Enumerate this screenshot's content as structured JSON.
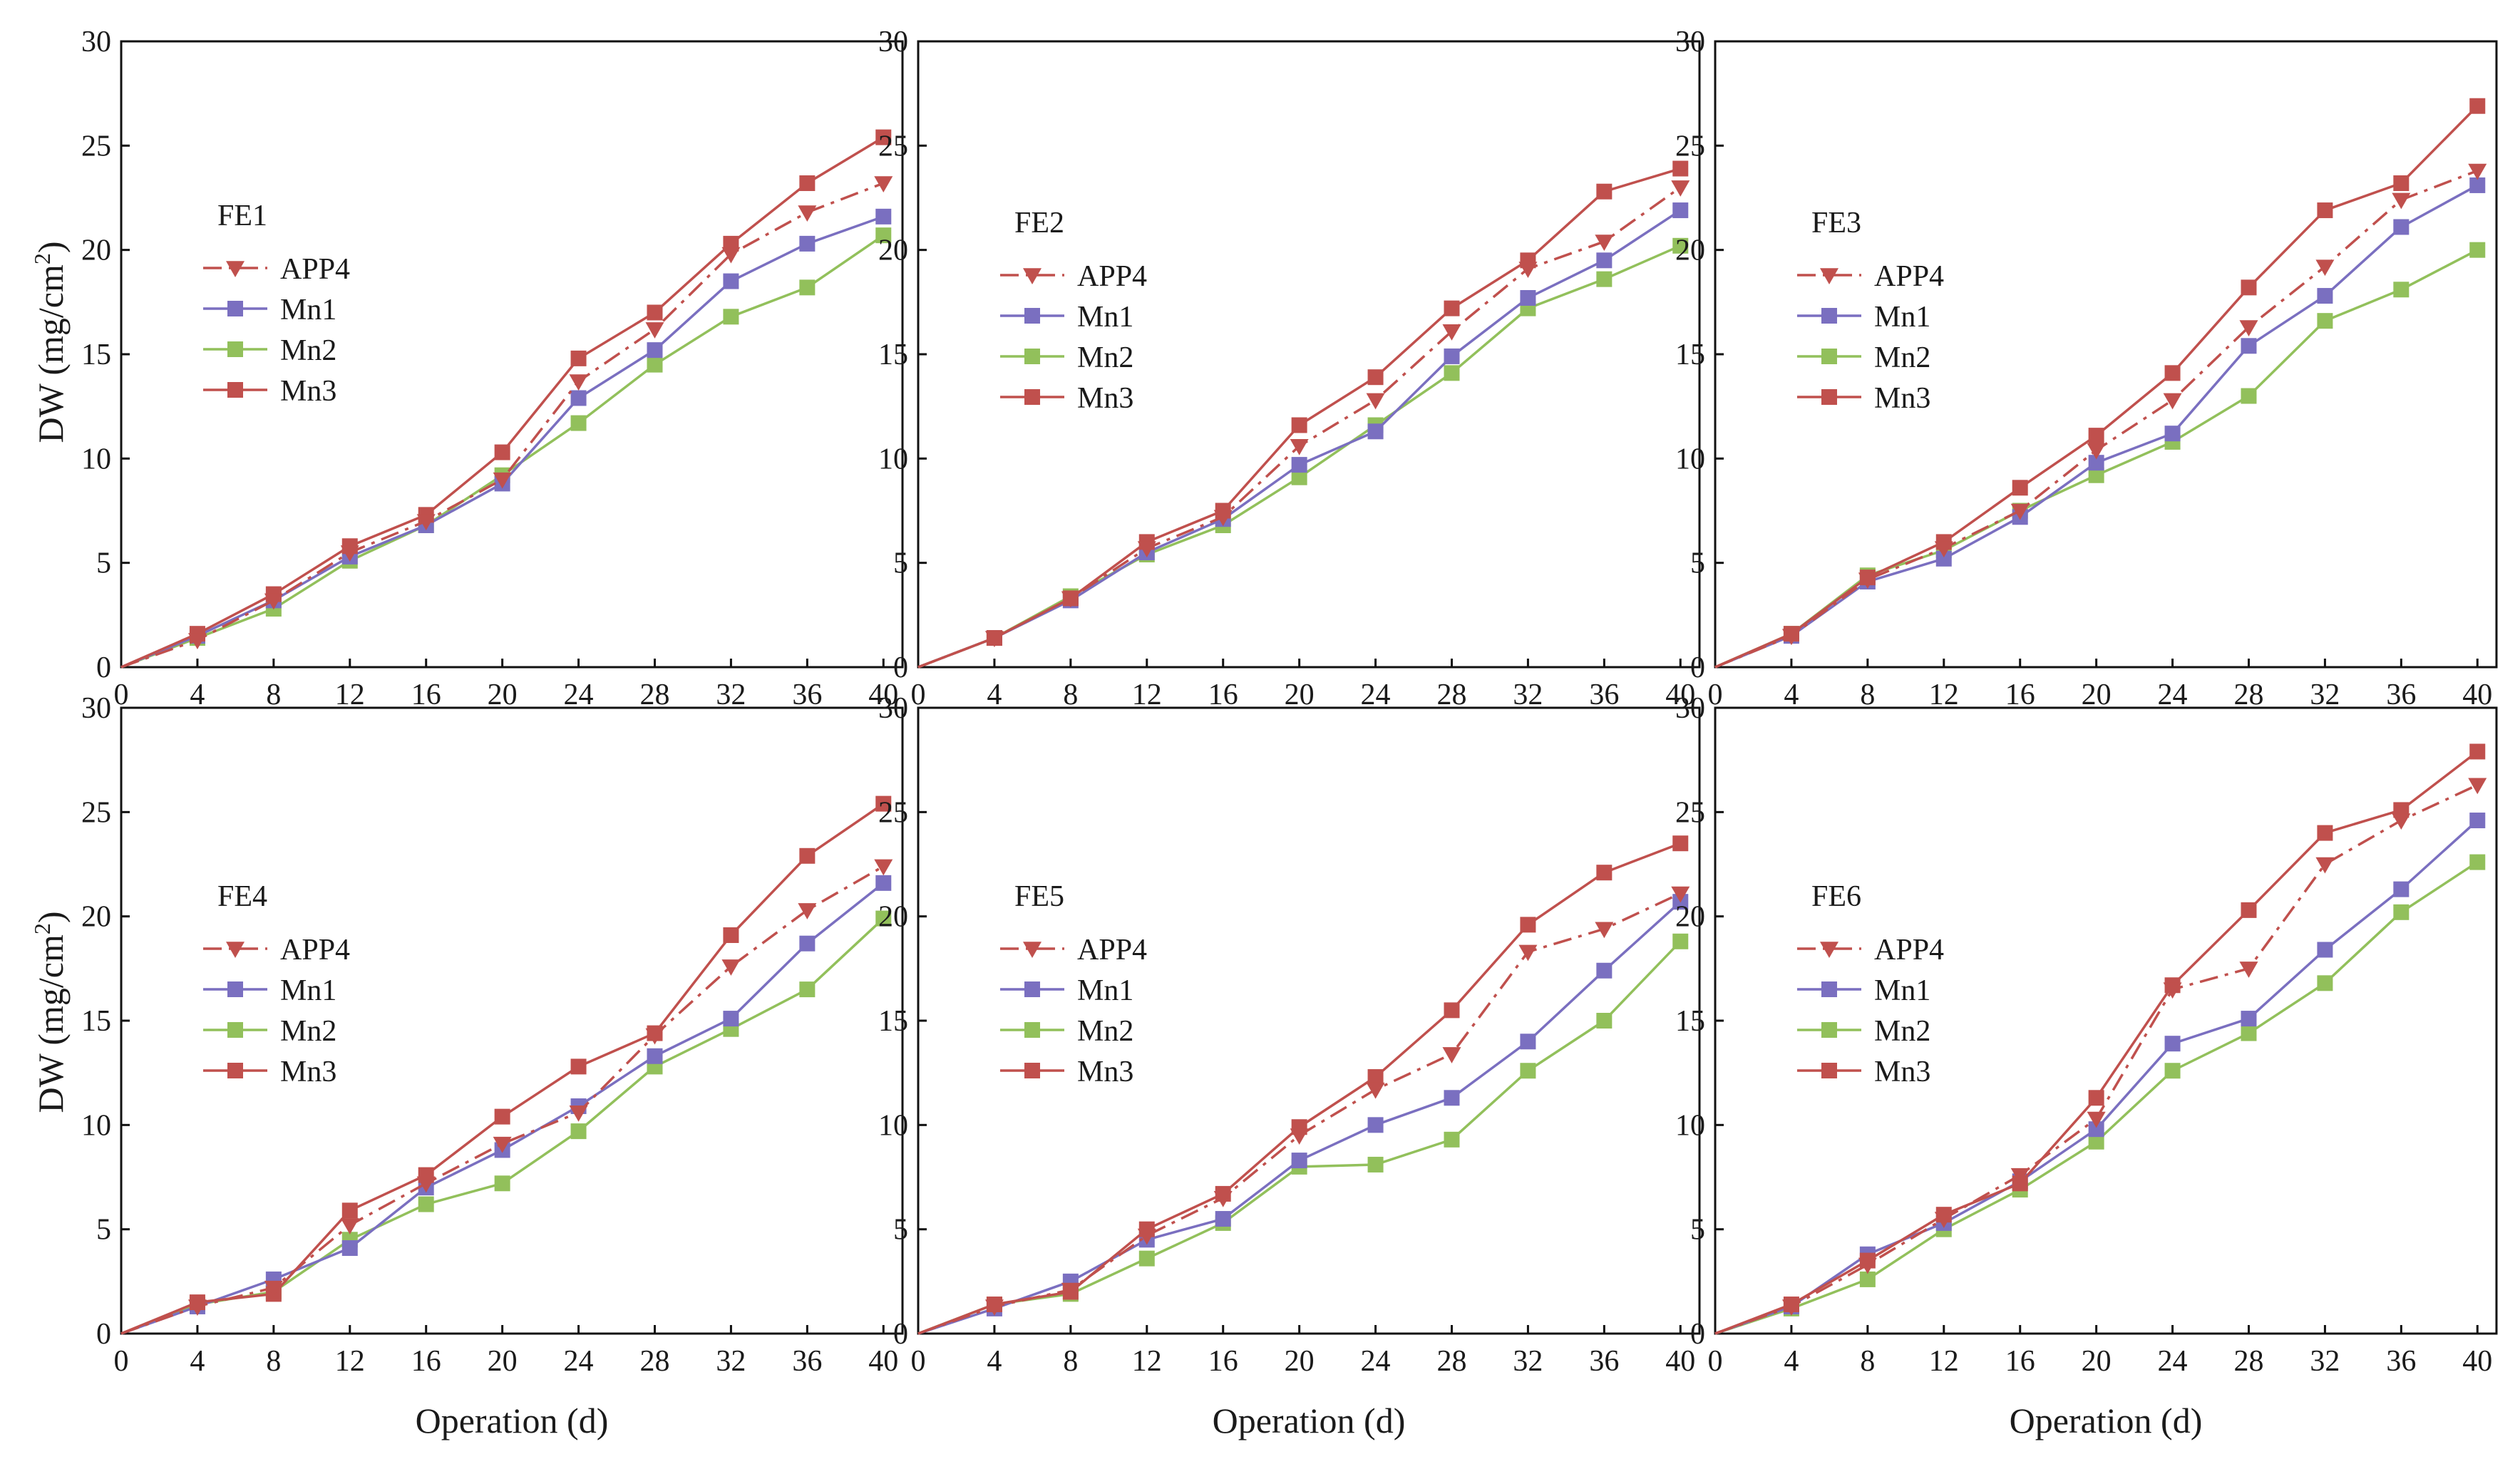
{
  "figure": {
    "y_axis_title": "DW (mg/cm",
    "y_axis_superscript": "2",
    "y_axis_title_end": ")",
    "x_axis_title": "Operation (d)"
  },
  "legend": [
    {
      "name": "APP4",
      "color": "#c0504d",
      "marker": "triangle-down",
      "dash": "dash-dot"
    },
    {
      "name": "Mn1",
      "color": "#7a6fc0",
      "marker": "square",
      "dash": "solid"
    },
    {
      "name": "Mn2",
      "color": "#92c05b",
      "marker": "square",
      "dash": "solid"
    },
    {
      "name": "Mn3",
      "color": "#c0504d",
      "marker": "square",
      "dash": "solid"
    }
  ],
  "chart_data": [
    {
      "type": "line",
      "title": "FE1",
      "xlabel": "Operation (d)",
      "ylabel": "DW (mg/cm2)",
      "x": [
        0,
        4,
        8,
        12,
        16,
        20,
        24,
        28,
        32,
        36,
        40
      ],
      "xlim": [
        0,
        41
      ],
      "ylim": [
        0,
        30
      ],
      "xticks": [
        0,
        4,
        8,
        12,
        16,
        20,
        24,
        28,
        32,
        36,
        40
      ],
      "yticks": [
        0,
        5,
        10,
        15,
        20,
        25,
        30
      ],
      "series": [
        {
          "name": "APP4",
          "values": [
            0,
            1.3,
            3.2,
            5.5,
            7.0,
            9.0,
            13.7,
            16.2,
            19.8,
            21.8,
            23.2
          ]
        },
        {
          "name": "Mn1",
          "values": [
            0,
            1.5,
            3.2,
            5.3,
            6.8,
            8.8,
            12.9,
            15.2,
            18.5,
            20.3,
            21.6
          ]
        },
        {
          "name": "Mn2",
          "values": [
            0,
            1.4,
            2.8,
            5.1,
            6.8,
            9.2,
            11.7,
            14.5,
            16.8,
            18.2,
            20.7
          ]
        },
        {
          "name": "Mn3",
          "values": [
            0,
            1.6,
            3.5,
            5.8,
            7.3,
            10.3,
            14.8,
            17.0,
            20.3,
            23.2,
            25.4
          ]
        }
      ]
    },
    {
      "type": "line",
      "title": "FE2",
      "xlabel": "Operation (d)",
      "ylabel": "DW (mg/cm2)",
      "x": [
        0,
        4,
        8,
        12,
        16,
        20,
        24,
        28,
        32,
        36,
        40
      ],
      "xlim": [
        0,
        41
      ],
      "ylim": [
        0,
        30
      ],
      "xticks": [
        0,
        4,
        8,
        12,
        16,
        20,
        24,
        28,
        32,
        36,
        40
      ],
      "yticks": [
        0,
        5,
        10,
        15,
        20,
        25,
        30
      ],
      "series": [
        {
          "name": "APP4",
          "values": [
            0,
            1.4,
            3.3,
            5.7,
            7.2,
            10.6,
            12.8,
            16.1,
            19.1,
            20.4,
            23.0
          ]
        },
        {
          "name": "Mn1",
          "values": [
            0,
            1.4,
            3.2,
            5.5,
            7.1,
            9.7,
            11.3,
            14.9,
            17.7,
            19.5,
            21.9
          ]
        },
        {
          "name": "Mn2",
          "values": [
            0,
            1.4,
            3.4,
            5.4,
            6.8,
            9.1,
            11.6,
            14.1,
            17.2,
            18.6,
            20.2
          ]
        },
        {
          "name": "Mn3",
          "values": [
            0,
            1.4,
            3.3,
            6.0,
            7.5,
            11.6,
            13.9,
            17.2,
            19.5,
            22.8,
            23.9
          ]
        }
      ]
    },
    {
      "type": "line",
      "title": "FE3",
      "xlabel": "Operation (d)",
      "ylabel": "DW (mg/cm2)",
      "x": [
        0,
        4,
        8,
        12,
        16,
        20,
        24,
        28,
        32,
        36,
        40
      ],
      "xlim": [
        0,
        41
      ],
      "ylim": [
        0,
        30
      ],
      "xticks": [
        0,
        4,
        8,
        12,
        16,
        20,
        24,
        28,
        32,
        36,
        40
      ],
      "yticks": [
        0,
        5,
        10,
        15,
        20,
        25,
        30
      ],
      "series": [
        {
          "name": "APP4",
          "values": [
            0,
            1.5,
            4.2,
            5.7,
            7.5,
            10.4,
            12.8,
            16.3,
            19.2,
            22.4,
            23.8
          ]
        },
        {
          "name": "Mn1",
          "values": [
            0,
            1.5,
            4.1,
            5.2,
            7.2,
            9.8,
            11.2,
            15.4,
            17.8,
            21.1,
            23.1
          ]
        },
        {
          "name": "Mn2",
          "values": [
            0,
            1.6,
            4.4,
            5.6,
            7.5,
            9.2,
            10.8,
            13.0,
            16.6,
            18.1,
            20.0
          ]
        },
        {
          "name": "Mn3",
          "values": [
            0,
            1.6,
            4.3,
            6.0,
            8.6,
            11.1,
            14.1,
            18.2,
            21.9,
            23.2,
            26.9
          ]
        }
      ]
    },
    {
      "type": "line",
      "title": "FE4",
      "xlabel": "Operation (d)",
      "ylabel": "DW (mg/cm2)",
      "x": [
        0,
        4,
        8,
        12,
        16,
        20,
        24,
        28,
        32,
        36,
        40
      ],
      "xlim": [
        0,
        41
      ],
      "ylim": [
        0,
        30
      ],
      "xticks": [
        0,
        4,
        8,
        12,
        16,
        20,
        24,
        28,
        32,
        36,
        40
      ],
      "yticks": [
        0,
        5,
        10,
        15,
        20,
        25,
        30
      ],
      "series": [
        {
          "name": "APP4",
          "values": [
            0,
            1.3,
            2.2,
            5.2,
            7.2,
            9.1,
            10.6,
            14.3,
            17.6,
            20.3,
            22.4
          ]
        },
        {
          "name": "Mn1",
          "values": [
            0,
            1.3,
            2.6,
            4.1,
            7.0,
            8.8,
            10.9,
            13.3,
            15.1,
            18.7,
            21.6
          ]
        },
        {
          "name": "Mn2",
          "values": [
            0,
            1.4,
            2.0,
            4.5,
            6.2,
            7.2,
            9.7,
            12.8,
            14.6,
            16.5,
            19.9
          ]
        },
        {
          "name": "Mn3",
          "values": [
            0,
            1.5,
            1.9,
            5.9,
            7.6,
            10.4,
            12.8,
            14.4,
            19.1,
            22.9,
            25.4
          ]
        }
      ]
    },
    {
      "type": "line",
      "title": "FE5",
      "xlabel": "Operation (d)",
      "ylabel": "DW (mg/cm2)",
      "x": [
        0,
        4,
        8,
        12,
        16,
        20,
        24,
        28,
        32,
        36,
        40
      ],
      "xlim": [
        0,
        41
      ],
      "ylim": [
        0,
        30
      ],
      "xticks": [
        0,
        4,
        8,
        12,
        16,
        20,
        24,
        28,
        32,
        36,
        40
      ],
      "yticks": [
        0,
        5,
        10,
        15,
        20,
        25,
        30
      ],
      "series": [
        {
          "name": "APP4",
          "values": [
            0,
            1.3,
            2.1,
            4.7,
            6.5,
            9.5,
            11.7,
            13.4,
            18.3,
            19.4,
            21.1
          ]
        },
        {
          "name": "Mn1",
          "values": [
            0,
            1.2,
            2.5,
            4.5,
            5.5,
            8.3,
            10.0,
            11.3,
            14.0,
            17.4,
            20.7
          ]
        },
        {
          "name": "Mn2",
          "values": [
            0,
            1.4,
            1.9,
            3.6,
            5.3,
            8.0,
            8.1,
            9.3,
            12.6,
            15.0,
            18.8
          ]
        },
        {
          "name": "Mn3",
          "values": [
            0,
            1.4,
            2.0,
            5.0,
            6.7,
            9.9,
            12.3,
            15.5,
            19.6,
            22.1,
            23.5
          ]
        }
      ]
    },
    {
      "type": "line",
      "title": "FE6",
      "xlabel": "Operation (d)",
      "ylabel": "DW (mg/cm2)",
      "x": [
        0,
        4,
        8,
        12,
        16,
        20,
        24,
        28,
        32,
        36,
        40
      ],
      "xlim": [
        0,
        41
      ],
      "ylim": [
        0,
        30
      ],
      "xticks": [
        0,
        4,
        8,
        12,
        16,
        20,
        24,
        28,
        32,
        36,
        40
      ],
      "yticks": [
        0,
        5,
        10,
        15,
        20,
        25,
        30
      ],
      "series": [
        {
          "name": "APP4",
          "values": [
            0,
            1.3,
            3.3,
            5.5,
            7.6,
            10.3,
            16.5,
            17.5,
            22.5,
            24.6,
            26.3
          ]
        },
        {
          "name": "Mn1",
          "values": [
            0,
            1.3,
            3.8,
            5.3,
            7.3,
            9.8,
            13.9,
            15.1,
            18.4,
            21.3,
            24.6
          ]
        },
        {
          "name": "Mn2",
          "values": [
            0,
            1.2,
            2.6,
            5.0,
            6.9,
            9.2,
            12.6,
            14.4,
            16.8,
            20.2,
            22.6
          ]
        },
        {
          "name": "Mn3",
          "values": [
            0,
            1.4,
            3.5,
            5.7,
            7.2,
            11.3,
            16.7,
            20.3,
            24.0,
            25.1,
            27.9
          ]
        }
      ]
    }
  ]
}
